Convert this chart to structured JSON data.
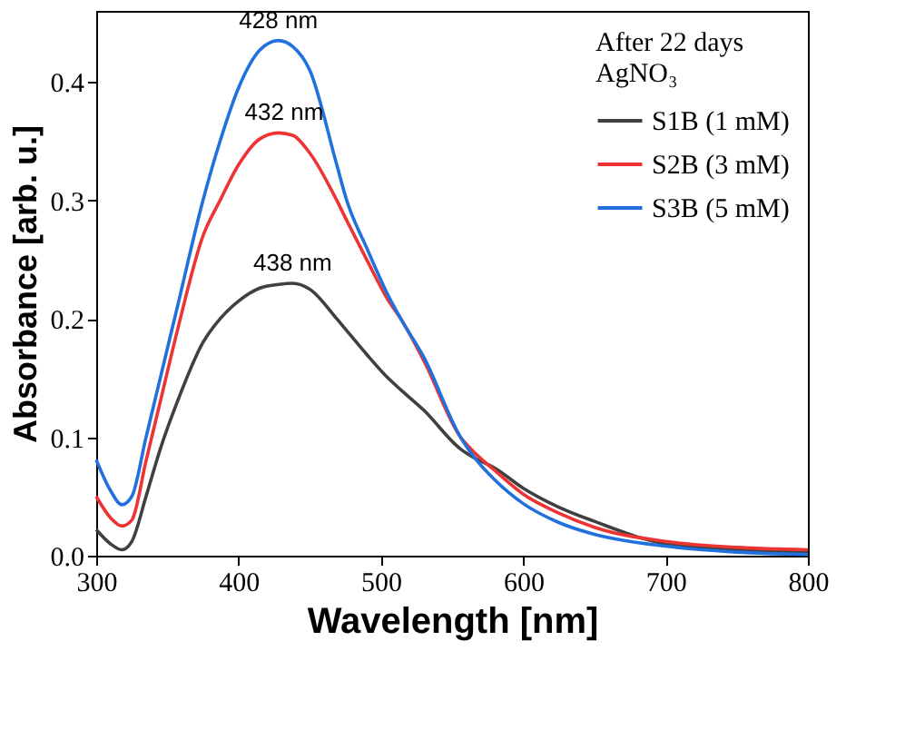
{
  "chart_data": {
    "type": "line",
    "xlabel": "Wavelength [nm]",
    "ylabel": "Absorbance [arb. u.]",
    "xlim": [
      300,
      800
    ],
    "xticks": [
      300,
      400,
      500,
      600,
      700,
      800
    ],
    "ylim": [
      0,
      0.46
    ],
    "yticks": [
      {
        "value": 0,
        "label": "0.0"
      },
      0.1,
      0.2,
      0.3,
      0.4
    ],
    "legend_title": [
      "After 22 days",
      "AgNO₃"
    ],
    "legend": "top right",
    "grid": false,
    "annotations": [
      {
        "text": "428 nm",
        "x": 428,
        "y": 0.435
      },
      {
        "text": "432 nm",
        "x": 432,
        "y": 0.357
      },
      {
        "text": "438 nm",
        "x": 438,
        "y": 0.23
      }
    ],
    "x": [
      300,
      310,
      318,
      325,
      335,
      345,
      357,
      375,
      387,
      400,
      415,
      428,
      438,
      450,
      469,
      476,
      490,
      505,
      514,
      530,
      556,
      565,
      580,
      600,
      625,
      650,
      700,
      750,
      800
    ],
    "series": [
      {
        "name": "S1B (1 mM)",
        "color": "#404040",
        "values": [
          0.022,
          0.01,
          0.005,
          0.012,
          0.05,
          0.09,
          0.13,
          0.18,
          0.2,
          0.215,
          0.226,
          0.229,
          0.23,
          0.225,
          0.2,
          0.19,
          0.17,
          0.15,
          0.14,
          0.123,
          0.09,
          0.083,
          0.074,
          0.057,
          0.041,
          0.029,
          0.01,
          0.005,
          0.003
        ]
      },
      {
        "name": "S2B (3 mM)",
        "color": "#ee3333",
        "values": [
          0.05,
          0.032,
          0.025,
          0.03,
          0.08,
          0.13,
          0.19,
          0.27,
          0.3,
          0.33,
          0.352,
          0.357,
          0.355,
          0.34,
          0.3,
          0.283,
          0.25,
          0.216,
          0.2,
          0.165,
          0.1,
          0.088,
          0.072,
          0.052,
          0.036,
          0.024,
          0.012,
          0.007,
          0.005
        ]
      },
      {
        "name": "S3B (5 mM)",
        "color": "#2070dd",
        "values": [
          0.081,
          0.055,
          0.043,
          0.05,
          0.1,
          0.15,
          0.21,
          0.3,
          0.35,
          0.395,
          0.427,
          0.435,
          0.43,
          0.41,
          0.33,
          0.3,
          0.26,
          0.22,
          0.2,
          0.168,
          0.1,
          0.084,
          0.064,
          0.044,
          0.028,
          0.018,
          0.008,
          0.003,
          0.001
        ]
      }
    ]
  }
}
